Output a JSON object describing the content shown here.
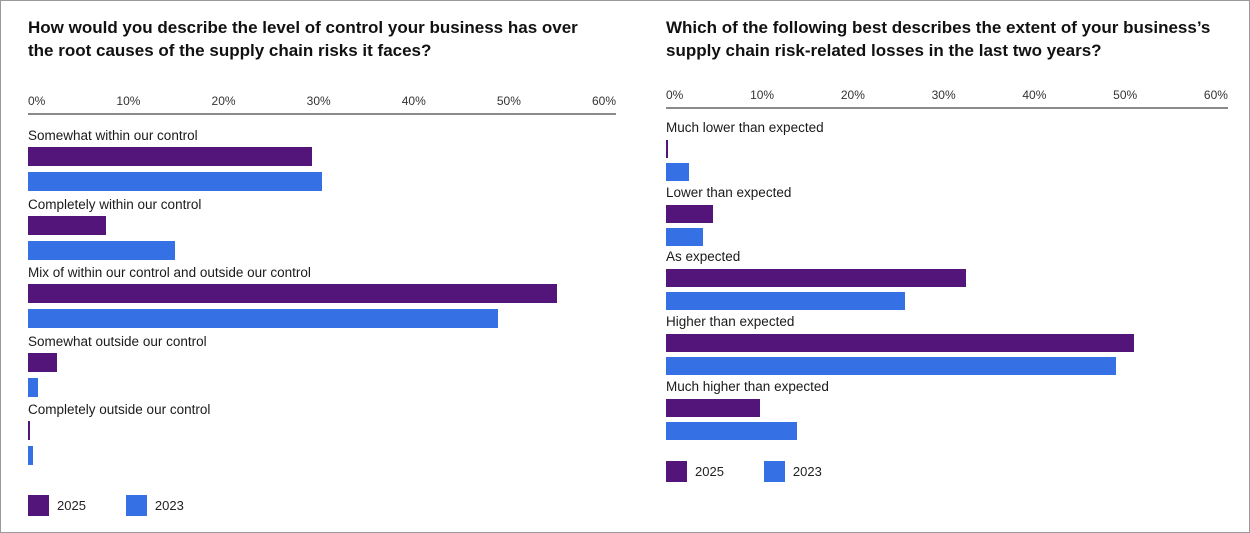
{
  "chart_data": [
    {
      "type": "bar",
      "orientation": "horizontal",
      "title": "How would you describe the level of control your business has over the root causes of the supply chain risks it faces?",
      "title_lines": [
        "How would you describe the level of control your business has over",
        "the root causes of the supply chain risks it faces?"
      ],
      "xlim": [
        0,
        60
      ],
      "tick_labels": [
        "0%",
        "10%",
        "20%",
        "30%",
        "40%",
        "50%",
        "60%"
      ],
      "unit": "%",
      "categories": [
        "Somewhat within our control",
        "Completely within our control",
        "Mix of within our control and outside our control",
        "Somewhat outside our control",
        "Completely outside our control"
      ],
      "series": [
        {
          "name": "2025",
          "color": "#53157a",
          "values": [
            29,
            8,
            54,
            3,
            0.2
          ]
        },
        {
          "name": "2023",
          "color": "#3571e4",
          "values": [
            30,
            15,
            48,
            1,
            0.5
          ]
        }
      ],
      "legend": "bottom-left",
      "grid": false
    },
    {
      "type": "bar",
      "orientation": "horizontal",
      "title": "Which of the following best describes the extent of your business's supply chain risk-related losses in the last two years?",
      "title_lines": [
        "Which of the following best describes the extent of your business’s",
        "supply chain risk-related losses in the last two years?"
      ],
      "xlim": [
        0,
        60
      ],
      "tick_labels": [
        "0%",
        "10%",
        "20%",
        "30%",
        "40%",
        "50%",
        "60%"
      ],
      "unit": "%",
      "categories": [
        "Much lower than expected",
        "Lower than expected",
        "As expected",
        "Higher than expected",
        "Much higher than expected"
      ],
      "series": [
        {
          "name": "2025",
          "color": "#53157a",
          "values": [
            0.2,
            5,
            32,
            50,
            10
          ]
        },
        {
          "name": "2023",
          "color": "#3571e4",
          "values": [
            2.5,
            4,
            25.5,
            48,
            14
          ]
        }
      ],
      "legend": "bottom-left",
      "grid": false
    }
  ]
}
